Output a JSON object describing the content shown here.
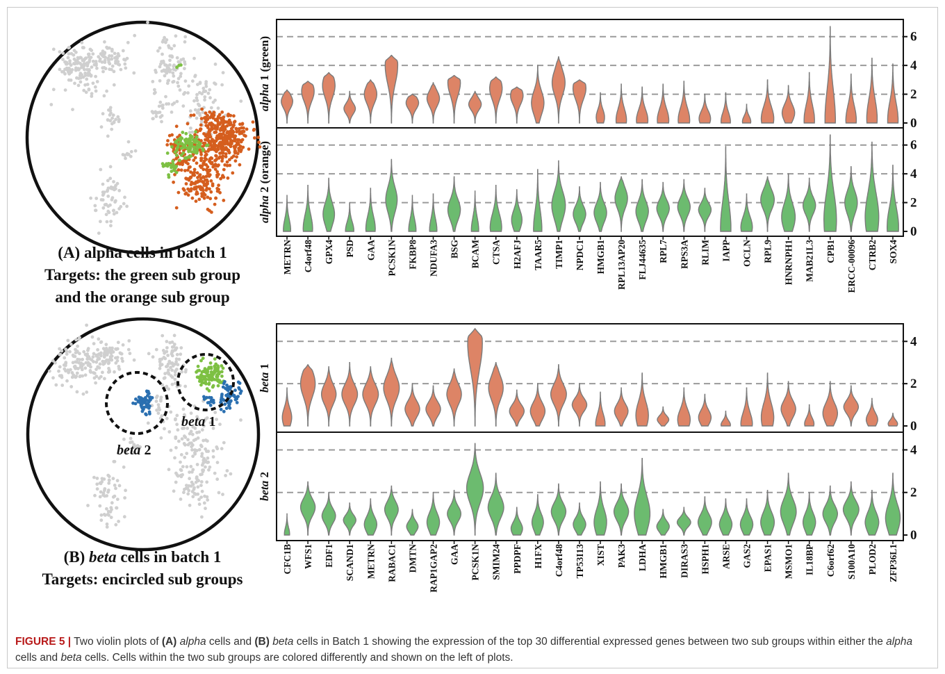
{
  "caption": {
    "figure_label": "FIGURE 5 |",
    "t1": " Two violin plots of ",
    "a_label": "(A)",
    "t2": " ",
    "alpha_word": "alpha",
    "t3": " cells and ",
    "b_label": "(B)",
    "t4": " ",
    "beta_word": "beta",
    "t5": " cells in Batch 1 showing the expression of the top 30 differential expressed genes between two sub groups within either the ",
    "alpha_word2": "alpha",
    "t6": " cells and ",
    "beta_word2": "beta",
    "t7": " cells. Cells within the two sub groups are colored differently and shown on the left of plots."
  },
  "panel_a": {
    "label_line1": "(A) alpha cells in batch 1",
    "label_line2": "Targets: the green sub group",
    "label_line3": "and the orange sub group"
  },
  "panel_b": {
    "label_prefix": "(B) ",
    "label_beta": "beta",
    "label_suffix": " cells in batch 1",
    "label_line2": "Targets: encircled sub groups",
    "circle_label_1_italic": "beta",
    "circle_label_1_num": " 1",
    "circle_label_2_italic": "beta",
    "circle_label_2_num": " 2"
  },
  "colors": {
    "orange": "#dd8466",
    "green": "#6cbb6f",
    "violin_stroke": "#7a7a7a",
    "scatter_gray": "#cfcfcf",
    "scatter_orange": "#d55e1e",
    "scatter_green": "#7dc043",
    "scatter_blue": "#2a6fb0"
  },
  "chart_data": [
    {
      "type": "violin",
      "panel": "A",
      "genes": [
        "METRN",
        "C4orf48",
        "GPX4",
        "PSD",
        "GAA",
        "PCSK1N",
        "FKBP8",
        "NDUFA3",
        "BSG",
        "BCAM",
        "CTSA",
        "H2AFJ",
        "TAAR5",
        "TIMP1",
        "NPDC1",
        "HMGB1",
        "RPL13AP20",
        "FLJ44635",
        "RPL7",
        "RPS3A",
        "RLIM",
        "IAPP",
        "OCLN",
        "RPL9",
        "HNRNPH1",
        "MAB21L3",
        "CPB1",
        "ERCC-00096",
        "CTRB2",
        "SOX4"
      ],
      "yticks": [
        0,
        2,
        4,
        6
      ],
      "ylim": [
        0,
        7
      ],
      "grid": "dashed at 2, 4, 6",
      "series": [
        {
          "name": "alpha 1 (green)",
          "ylabel_italic": "alpha",
          "ylabel_rest": " 1 (green)",
          "color": "orange",
          "max": [
            2.3,
            2.9,
            3.5,
            2.2,
            3.0,
            4.7,
            2.0,
            2.8,
            3.3,
            2.2,
            3.2,
            2.5,
            4.0,
            4.6,
            3.0,
            2.1,
            2.7,
            2.5,
            2.7,
            2.9,
            2.0,
            2.1,
            1.3,
            3.0,
            2.6,
            3.5,
            6.7,
            3.4,
            4.5,
            4.1
          ],
          "mode": [
            1.5,
            2.2,
            2.6,
            1.0,
            2.0,
            4.0,
            1.4,
            1.7,
            2.8,
            1.3,
            2.4,
            1.9,
            1.4,
            2.8,
            2.4,
            0.4,
            0.2,
            0.2,
            0.2,
            0.2,
            0.3,
            0.1,
            0.1,
            0.3,
            0.7,
            0.2,
            0.2,
            0.2,
            0.3,
            0.2
          ],
          "width": [
            0.55,
            0.6,
            0.6,
            0.55,
            0.6,
            0.6,
            0.6,
            0.6,
            0.6,
            0.6,
            0.6,
            0.6,
            0.6,
            0.62,
            0.62,
            0.4,
            0.5,
            0.55,
            0.55,
            0.55,
            0.55,
            0.45,
            0.4,
            0.6,
            0.6,
            0.5,
            0.5,
            0.5,
            0.5,
            0.5
          ]
        },
        {
          "name": "alpha 2 (orange)",
          "ylabel_italic": "alpha",
          "ylabel_rest": " 2 (orange)",
          "color": "green",
          "max": [
            2.5,
            3.2,
            3.7,
            2.0,
            3.0,
            5.0,
            2.5,
            2.6,
            3.8,
            2.8,
            3.2,
            2.9,
            4.3,
            4.9,
            3.1,
            3.4,
            3.8,
            3.6,
            3.4,
            3.6,
            3.0,
            5.9,
            2.6,
            3.8,
            4.0,
            3.7,
            6.7,
            4.5,
            6.2,
            4.6
          ],
          "mode": [
            0.1,
            0.2,
            1.2,
            0.05,
            0.2,
            2.2,
            0.1,
            0.1,
            1.5,
            0.1,
            0.3,
            0.8,
            0.15,
            1.8,
            1.2,
            1.3,
            2.3,
            1.4,
            1.6,
            1.7,
            1.5,
            0.2,
            0.3,
            2.2,
            1.0,
            1.8,
            0.8,
            2.0,
            1.0,
            0.3
          ],
          "width": [
            0.35,
            0.45,
            0.55,
            0.4,
            0.45,
            0.55,
            0.35,
            0.35,
            0.6,
            0.35,
            0.55,
            0.5,
            0.4,
            0.65,
            0.6,
            0.6,
            0.6,
            0.6,
            0.6,
            0.6,
            0.6,
            0.5,
            0.55,
            0.65,
            0.65,
            0.6,
            0.6,
            0.6,
            0.65,
            0.55
          ]
        }
      ]
    },
    {
      "type": "violin",
      "panel": "B",
      "genes": [
        "CFC1B",
        "WFS1",
        "EDF1",
        "SCAND1",
        "METRN",
        "RABAC1",
        "DMTN",
        "RAP1GAP2",
        "GAA",
        "PCSK1N",
        "SMIM24",
        "PPDPF",
        "H1FX",
        "C4orf48",
        "TP53I13",
        "XIST",
        "PAK3",
        "LDHA",
        "HMGB1",
        "DIRAS3",
        "HSPH1",
        "ARSE",
        "GAS2",
        "EPAS1",
        "MSMO1",
        "IL18BP",
        "C6orf62",
        "S100A10",
        "PLOD2",
        "ZFP36L1"
      ],
      "yticks": [
        0,
        2,
        4
      ],
      "ylim": [
        0,
        4.7
      ],
      "grid": "dashed at 2, 4",
      "series": [
        {
          "name": "beta 1",
          "ylabel_italic": "beta",
          "ylabel_rest": " 1",
          "color": "orange",
          "max": [
            1.8,
            2.9,
            2.8,
            3.0,
            2.8,
            3.2,
            2.0,
            1.9,
            2.7,
            4.6,
            3.0,
            1.7,
            2.0,
            2.9,
            2.0,
            1.6,
            1.8,
            2.5,
            0.9,
            1.8,
            1.5,
            0.7,
            1.8,
            2.5,
            2.1,
            1.0,
            2.1,
            1.9,
            1.3,
            0.6
          ],
          "mode": [
            0.4,
            2.0,
            1.5,
            1.5,
            1.5,
            1.8,
            0.8,
            0.8,
            1.5,
            3.9,
            1.8,
            0.7,
            0.7,
            1.5,
            1.0,
            0.1,
            0.7,
            0.5,
            0.3,
            0.3,
            0.4,
            0.05,
            0.1,
            0.4,
            0.8,
            0.1,
            0.6,
            0.9,
            0.3,
            0.1
          ],
          "width": [
            0.45,
            0.7,
            0.7,
            0.75,
            0.75,
            0.75,
            0.7,
            0.7,
            0.7,
            0.7,
            0.7,
            0.7,
            0.7,
            0.75,
            0.7,
            0.45,
            0.65,
            0.6,
            0.55,
            0.6,
            0.6,
            0.45,
            0.55,
            0.6,
            0.7,
            0.45,
            0.7,
            0.7,
            0.55,
            0.45
          ]
        },
        {
          "name": "beta 2",
          "ylabel_italic": "beta",
          "ylabel_rest": " 2",
          "color": "green",
          "max": [
            1.0,
            2.5,
            2.0,
            1.5,
            1.7,
            2.3,
            1.2,
            2.0,
            2.1,
            4.3,
            2.9,
            1.3,
            1.9,
            2.4,
            1.5,
            2.5,
            2.4,
            3.6,
            1.2,
            1.3,
            1.8,
            1.7,
            1.7,
            2.1,
            2.9,
            2.0,
            2.3,
            2.5,
            2.1,
            2.9
          ],
          "mode": [
            0.05,
            1.3,
            0.9,
            0.7,
            0.5,
            1.2,
            0.4,
            0.6,
            1.0,
            2.2,
            1.3,
            0.3,
            0.6,
            1.1,
            0.5,
            0.6,
            1.1,
            1.0,
            0.4,
            0.6,
            0.6,
            0.5,
            0.5,
            0.6,
            1.1,
            0.6,
            1.0,
            1.2,
            0.6,
            0.8
          ],
          "width": [
            0.25,
            0.7,
            0.65,
            0.6,
            0.6,
            0.65,
            0.55,
            0.6,
            0.65,
            0.8,
            0.75,
            0.55,
            0.55,
            0.7,
            0.6,
            0.6,
            0.7,
            0.75,
            0.6,
            0.65,
            0.65,
            0.6,
            0.6,
            0.65,
            0.75,
            0.6,
            0.7,
            0.75,
            0.65,
            0.7
          ]
        }
      ]
    }
  ]
}
